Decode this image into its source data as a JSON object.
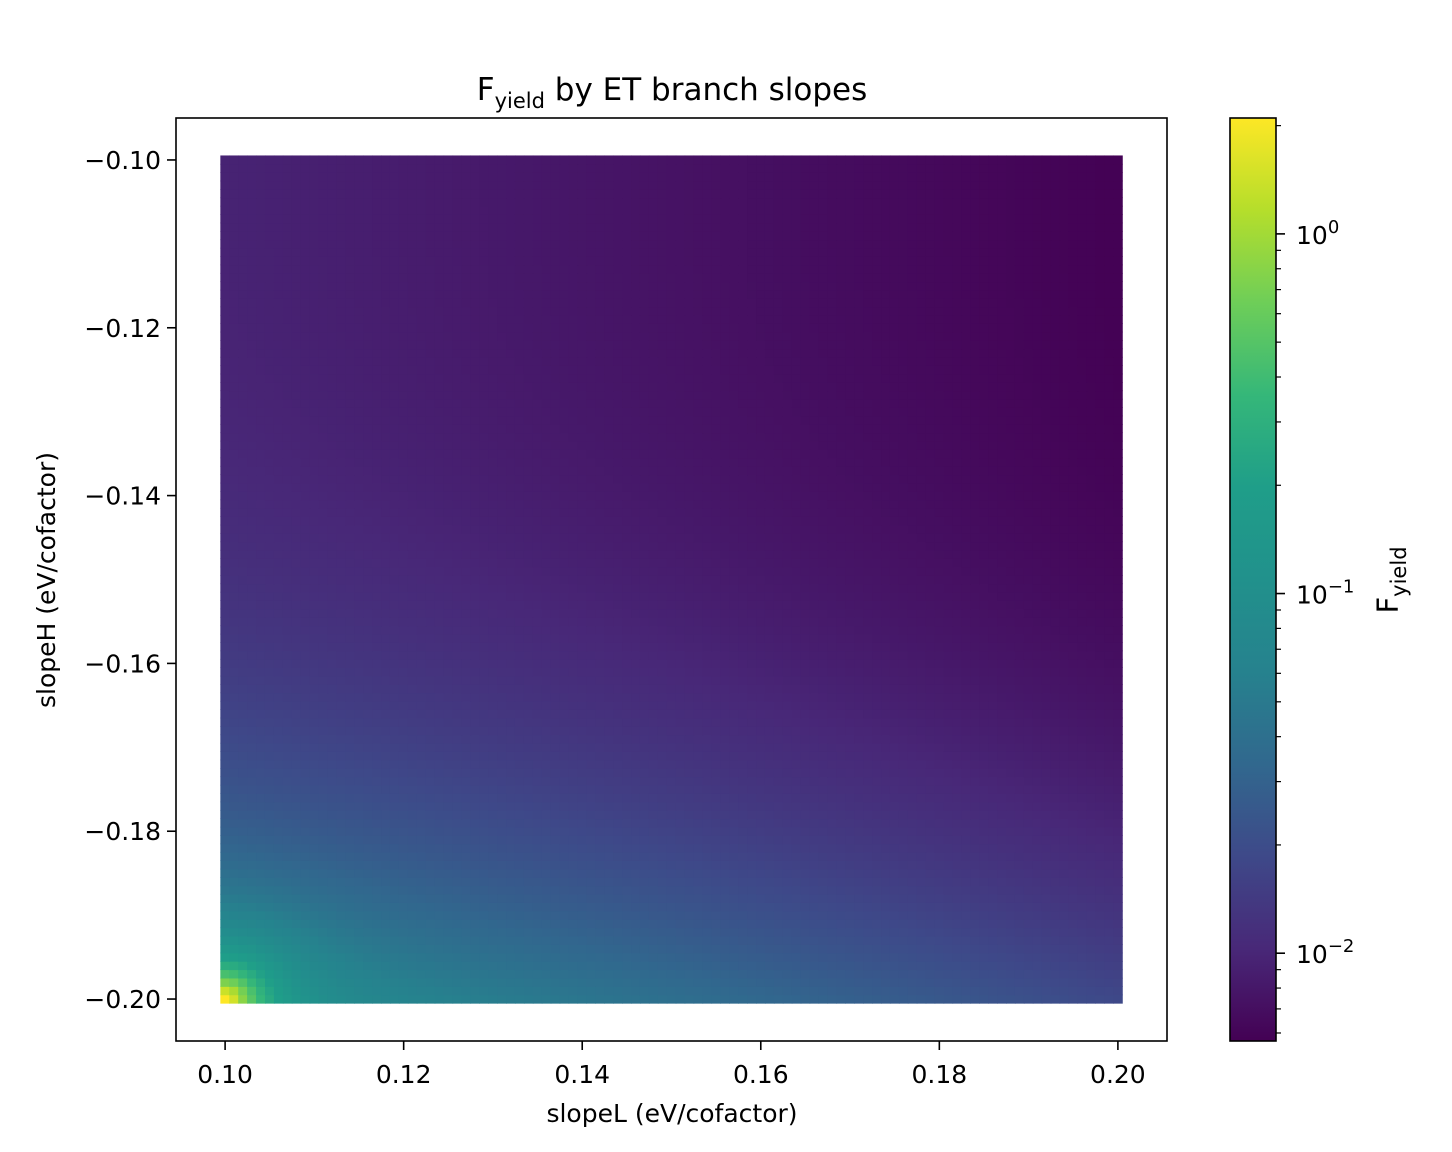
{
  "chart_data": {
    "type": "heatmap",
    "title": {
      "main": "F",
      "sub": "yield",
      "rest": " by ET branch slopes"
    },
    "xlabel": "slopeL (eV/cofactor)",
    "ylabel": "slopeH (eV/cofactor)",
    "xlim": [
      0.0945,
      0.2055
    ],
    "ylim": [
      -0.205,
      -0.095
    ],
    "x_range": [
      0.1,
      0.2
    ],
    "y_range": [
      -0.2,
      -0.1
    ],
    "grid": false,
    "xticks": [
      0.1,
      0.12,
      0.14,
      0.16,
      0.18,
      0.2
    ],
    "xtick_labels": [
      "0.10",
      "0.12",
      "0.14",
      "0.16",
      "0.18",
      "0.20"
    ],
    "yticks": [
      -0.1,
      -0.12,
      -0.14,
      -0.16,
      -0.18,
      -0.2
    ],
    "ytick_labels": [
      "−0.10",
      "−0.12",
      "−0.14",
      "−0.16",
      "−0.18",
      "−0.20"
    ],
    "colorbar": {
      "label": {
        "main": "F",
        "sub": "yield"
      },
      "scale": "log",
      "colormap": "viridis",
      "vmin": 0.0057,
      "vmax": 2.1,
      "ticks": [
        1,
        0.1,
        0.01
      ],
      "tick_labels": [
        {
          "base": "10",
          "exp": "0"
        },
        {
          "base": "10",
          "exp": "−1"
        },
        {
          "base": "10",
          "exp": "−2"
        }
      ]
    },
    "samples": [
      {
        "slopeL": 0.1,
        "slopeH": -0.2,
        "F_yield": 2.0
      },
      {
        "slopeL": 0.11,
        "slopeH": -0.2,
        "F_yield": 0.16
      },
      {
        "slopeL": 0.15,
        "slopeH": -0.2,
        "F_yield": 0.045
      },
      {
        "slopeL": 0.2,
        "slopeH": -0.2,
        "F_yield": 0.021
      },
      {
        "slopeL": 0.1,
        "slopeH": -0.18,
        "F_yield": 0.045
      },
      {
        "slopeL": 0.1,
        "slopeH": -0.15,
        "F_yield": 0.017
      },
      {
        "slopeL": 0.1,
        "slopeH": -0.1,
        "F_yield": 0.0095
      },
      {
        "slopeL": 0.15,
        "slopeH": -0.15,
        "F_yield": 0.0098
      },
      {
        "slopeL": 0.2,
        "slopeH": -0.1,
        "F_yield": 0.0058
      }
    ]
  }
}
